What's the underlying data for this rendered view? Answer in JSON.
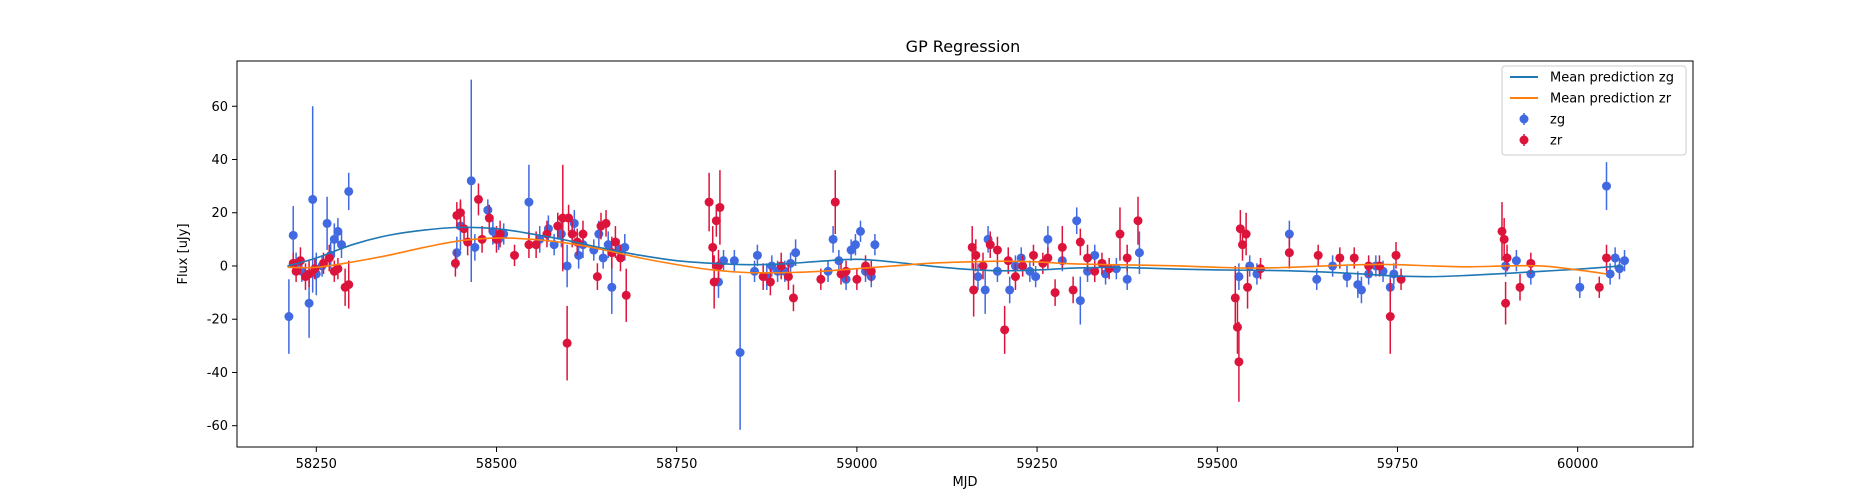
{
  "chart_data": {
    "type": "scatter",
    "title": "GP Regression",
    "xlabel": "MJD",
    "ylabel": "Flux [uJy]",
    "xlim": [
      58140,
      60160
    ],
    "ylim": [
      -68,
      77
    ],
    "xticks": [
      58250,
      58500,
      58750,
      59000,
      59250,
      59500,
      59750,
      60000
    ],
    "yticks": [
      -60,
      -40,
      -20,
      0,
      20,
      40,
      60
    ],
    "grid": false,
    "legend_position": "top-right",
    "lines": [
      {
        "name": "Mean prediction zg",
        "color": "#1f77b4",
        "x": [
          58210,
          58250,
          58300,
          58350,
          58400,
          58450,
          58500,
          58550,
          58600,
          58650,
          58700,
          58750,
          58800,
          58850,
          58900,
          58950,
          59000,
          59050,
          59100,
          59150,
          59200,
          59250,
          59300,
          59350,
          59400,
          59450,
          59500,
          59550,
          59600,
          59650,
          59700,
          59750,
          59800,
          59850,
          59900,
          59950,
          60000,
          60060
        ],
        "y": [
          0,
          3,
          8,
          11.5,
          13.5,
          14.5,
          14,
          12,
          9.5,
          6.5,
          4,
          2,
          1,
          0.5,
          0.8,
          1.8,
          2.5,
          1.5,
          0,
          -1.2,
          -1.8,
          -1.5,
          -0.8,
          -0.5,
          -0.8,
          -1.2,
          -1.5,
          -1.6,
          -1.8,
          -2.3,
          -3,
          -3.8,
          -4,
          -3.5,
          -2.8,
          -2,
          -1.2,
          0
        ]
      },
      {
        "name": "Mean prediction zr",
        "color": "#ff7f0e",
        "x": [
          58210,
          58250,
          58300,
          58350,
          58400,
          58450,
          58500,
          58550,
          58600,
          58650,
          58700,
          58750,
          58800,
          58850,
          58900,
          58950,
          59000,
          59050,
          59100,
          59150,
          59200,
          59250,
          59300,
          59350,
          59400,
          59450,
          59500,
          59550,
          59600,
          59650,
          59700,
          59750,
          59800,
          59850,
          59900,
          59950,
          60000,
          60040
        ],
        "y": [
          -0.5,
          -0.5,
          1.5,
          4,
          7,
          9.5,
          10.5,
          10,
          8.5,
          6,
          3,
          0.5,
          -1.5,
          -2.5,
          -2.5,
          -2,
          -1,
          0,
          1,
          1.5,
          1.8,
          1.5,
          0.8,
          0.5,
          0.3,
          0,
          -0.5,
          -0.8,
          -0.5,
          0,
          0.5,
          0.5,
          0,
          -0.3,
          0,
          0,
          -1.5,
          -3
        ]
      }
    ],
    "series": [
      {
        "name": "zg",
        "color": "#4169e1",
        "points": [
          [
            58212,
            -19,
            14
          ],
          [
            58218,
            11.5,
            11
          ],
          [
            58222,
            1,
            4
          ],
          [
            58230,
            -2,
            4
          ],
          [
            58240,
            -14,
            13
          ],
          [
            58245,
            25,
            35
          ],
          [
            58250,
            -3,
            8
          ],
          [
            58258,
            0,
            4
          ],
          [
            58265,
            16,
            10
          ],
          [
            58270,
            4,
            5
          ],
          [
            58275,
            10,
            6
          ],
          [
            58280,
            13,
            5
          ],
          [
            58285,
            8,
            5
          ],
          [
            58295,
            28,
            7
          ],
          [
            58445,
            5,
            6
          ],
          [
            58450,
            15,
            9
          ],
          [
            58465,
            32,
            38
          ],
          [
            58470,
            7,
            5
          ],
          [
            58488,
            21,
            4
          ],
          [
            58495,
            13,
            5
          ],
          [
            58503,
            10,
            4
          ],
          [
            58510,
            12,
            4
          ],
          [
            58545,
            24,
            14
          ],
          [
            58560,
            10,
            5
          ],
          [
            58572,
            14,
            5
          ],
          [
            58580,
            8,
            4
          ],
          [
            58590,
            12,
            5
          ],
          [
            58598,
            0,
            8
          ],
          [
            58608,
            16,
            5
          ],
          [
            58614,
            4,
            5
          ],
          [
            58620,
            8,
            5
          ],
          [
            58635,
            6,
            4
          ],
          [
            58642,
            12,
            5
          ],
          [
            58648,
            3,
            4
          ],
          [
            58655,
            8,
            5
          ],
          [
            58660,
            -8,
            10
          ],
          [
            58670,
            6,
            4
          ],
          [
            58678,
            7,
            5
          ],
          [
            58808,
            -6,
            6
          ],
          [
            58815,
            2,
            4
          ],
          [
            58830,
            2,
            4
          ],
          [
            58838,
            -32.5,
            29
          ],
          [
            58858,
            -2,
            4
          ],
          [
            58862,
            4,
            4
          ],
          [
            58875,
            -4,
            5
          ],
          [
            58882,
            0,
            4
          ],
          [
            58890,
            -2,
            4
          ],
          [
            58900,
            -2,
            4
          ],
          [
            58908,
            1,
            4
          ],
          [
            58915,
            5,
            5
          ],
          [
            58960,
            -2,
            4
          ],
          [
            58967,
            10,
            5
          ],
          [
            58975,
            2,
            4
          ],
          [
            58985,
            -5,
            4
          ],
          [
            58992,
            6,
            4
          ],
          [
            58998,
            8,
            4
          ],
          [
            59005,
            13,
            4
          ],
          [
            59012,
            -2,
            4
          ],
          [
            59020,
            -4,
            4
          ],
          [
            59025,
            8,
            4
          ],
          [
            59168,
            -4,
            5
          ],
          [
            59178,
            -9,
            9
          ],
          [
            59182,
            10,
            5
          ],
          [
            59195,
            -2,
            4
          ],
          [
            59212,
            -9,
            5
          ],
          [
            59220,
            0,
            4
          ],
          [
            59228,
            3,
            4
          ],
          [
            59240,
            -2,
            4
          ],
          [
            59248,
            -4,
            4
          ],
          [
            59265,
            10,
            5
          ],
          [
            59285,
            2,
            4
          ],
          [
            59305,
            17,
            5
          ],
          [
            59310,
            -13,
            9
          ],
          [
            59320,
            -2,
            4
          ],
          [
            59330,
            4,
            4
          ],
          [
            59345,
            -3,
            4
          ],
          [
            59360,
            -1,
            4
          ],
          [
            59375,
            -5,
            4
          ],
          [
            59392,
            5,
            8
          ],
          [
            59530,
            -4,
            5
          ],
          [
            59545,
            0,
            4
          ],
          [
            59555,
            -3,
            4
          ],
          [
            59600,
            12,
            5
          ],
          [
            59638,
            -5,
            4
          ],
          [
            59660,
            0,
            4
          ],
          [
            59680,
            -4,
            4
          ],
          [
            59695,
            -7,
            5
          ],
          [
            59700,
            -9,
            5
          ],
          [
            59710,
            -3,
            4
          ],
          [
            59720,
            0,
            4
          ],
          [
            59730,
            -2,
            4
          ],
          [
            59740,
            -8,
            5
          ],
          [
            59745,
            -3,
            4
          ],
          [
            59900,
            0,
            4
          ],
          [
            59915,
            2,
            4
          ],
          [
            59935,
            -3,
            4
          ],
          [
            60003,
            -8,
            4
          ],
          [
            60040,
            30,
            9
          ],
          [
            60045,
            -3,
            4
          ],
          [
            60052,
            3,
            4
          ],
          [
            60058,
            -1,
            4
          ],
          [
            60065,
            2,
            4
          ]
        ]
      },
      {
        "name": "zr",
        "color": "#dc143c",
        "points": [
          [
            58218,
            1,
            4
          ],
          [
            58222,
            -2,
            4
          ],
          [
            58228,
            2,
            5
          ],
          [
            58235,
            -4,
            5
          ],
          [
            58240,
            -3,
            5
          ],
          [
            58248,
            -1,
            4
          ],
          [
            58260,
            1,
            4
          ],
          [
            58268,
            3,
            5
          ],
          [
            58275,
            -2,
            4
          ],
          [
            58280,
            -1,
            4
          ],
          [
            58290,
            -8,
            7
          ],
          [
            58295,
            -7,
            9
          ],
          [
            58443,
            1,
            5
          ],
          [
            58445,
            19,
            5
          ],
          [
            58450,
            20,
            5
          ],
          [
            58455,
            14,
            5
          ],
          [
            58460,
            9,
            5
          ],
          [
            58475,
            25,
            6
          ],
          [
            58480,
            10,
            5
          ],
          [
            58490,
            18,
            5
          ],
          [
            58500,
            10,
            5
          ],
          [
            58505,
            12,
            5
          ],
          [
            58525,
            4,
            4
          ],
          [
            58545,
            8,
            5
          ],
          [
            58555,
            8,
            5
          ],
          [
            58570,
            12,
            5
          ],
          [
            58585,
            15,
            5
          ],
          [
            58592,
            18,
            20
          ],
          [
            58598,
            -29,
            14
          ],
          [
            58600,
            18,
            5
          ],
          [
            58605,
            12,
            5
          ],
          [
            58612,
            9,
            5
          ],
          [
            58620,
            12,
            5
          ],
          [
            58640,
            -4,
            5
          ],
          [
            58645,
            15,
            5
          ],
          [
            58652,
            16,
            5
          ],
          [
            58660,
            5,
            6
          ],
          [
            58665,
            9,
            6
          ],
          [
            58672,
            3,
            5
          ],
          [
            58680,
            -11,
            10
          ],
          [
            58795,
            24,
            11
          ],
          [
            58800,
            7,
            8
          ],
          [
            58802,
            -6,
            10
          ],
          [
            58805,
            17,
            6
          ],
          [
            58808,
            0,
            6
          ],
          [
            58810,
            22,
            14
          ],
          [
            58870,
            -4,
            5
          ],
          [
            58880,
            -6,
            5
          ],
          [
            58895,
            0,
            5
          ],
          [
            58905,
            -4,
            5
          ],
          [
            58912,
            -12,
            5
          ],
          [
            58950,
            -5,
            4
          ],
          [
            58970,
            24,
            12
          ],
          [
            58978,
            -3,
            4
          ],
          [
            58985,
            -2,
            4
          ],
          [
            59000,
            -5,
            4
          ],
          [
            59012,
            0,
            4
          ],
          [
            59020,
            -2,
            4
          ],
          [
            59160,
            7,
            8
          ],
          [
            59162,
            -9,
            10
          ],
          [
            59165,
            4,
            6
          ],
          [
            59175,
            0,
            5
          ],
          [
            59185,
            8,
            5
          ],
          [
            59195,
            6,
            5
          ],
          [
            59205,
            -24,
            9
          ],
          [
            59210,
            2,
            5
          ],
          [
            59220,
            -4,
            5
          ],
          [
            59230,
            0,
            4
          ],
          [
            59245,
            4,
            4
          ],
          [
            59258,
            1,
            4
          ],
          [
            59265,
            3,
            4
          ],
          [
            59275,
            -10,
            5
          ],
          [
            59285,
            7,
            8
          ],
          [
            59300,
            -9,
            5
          ],
          [
            59310,
            9,
            5
          ],
          [
            59320,
            3,
            5
          ],
          [
            59330,
            -2,
            4
          ],
          [
            59340,
            1,
            4
          ],
          [
            59350,
            -1,
            4
          ],
          [
            59365,
            12,
            10
          ],
          [
            59375,
            3,
            5
          ],
          [
            59390,
            17,
            9
          ],
          [
            59525,
            -12,
            12
          ],
          [
            59528,
            -23,
            10
          ],
          [
            59530,
            -36,
            15
          ],
          [
            59532,
            14,
            7
          ],
          [
            59535,
            8,
            6
          ],
          [
            59540,
            12,
            8
          ],
          [
            59542,
            -8,
            8
          ],
          [
            59560,
            -1,
            4
          ],
          [
            59600,
            5,
            6
          ],
          [
            59640,
            4,
            4
          ],
          [
            59670,
            3,
            4
          ],
          [
            59690,
            3,
            4
          ],
          [
            59710,
            0,
            4
          ],
          [
            59725,
            0,
            4
          ],
          [
            59740,
            -19,
            14
          ],
          [
            59748,
            4,
            5
          ],
          [
            59755,
            -5,
            4
          ],
          [
            59895,
            13,
            11
          ],
          [
            59898,
            10,
            8
          ],
          [
            59900,
            -14,
            8
          ],
          [
            59902,
            3,
            5
          ],
          [
            59920,
            -8,
            5
          ],
          [
            59935,
            1,
            4
          ],
          [
            60030,
            -8,
            4
          ],
          [
            60040,
            3,
            5
          ]
        ]
      }
    ]
  }
}
